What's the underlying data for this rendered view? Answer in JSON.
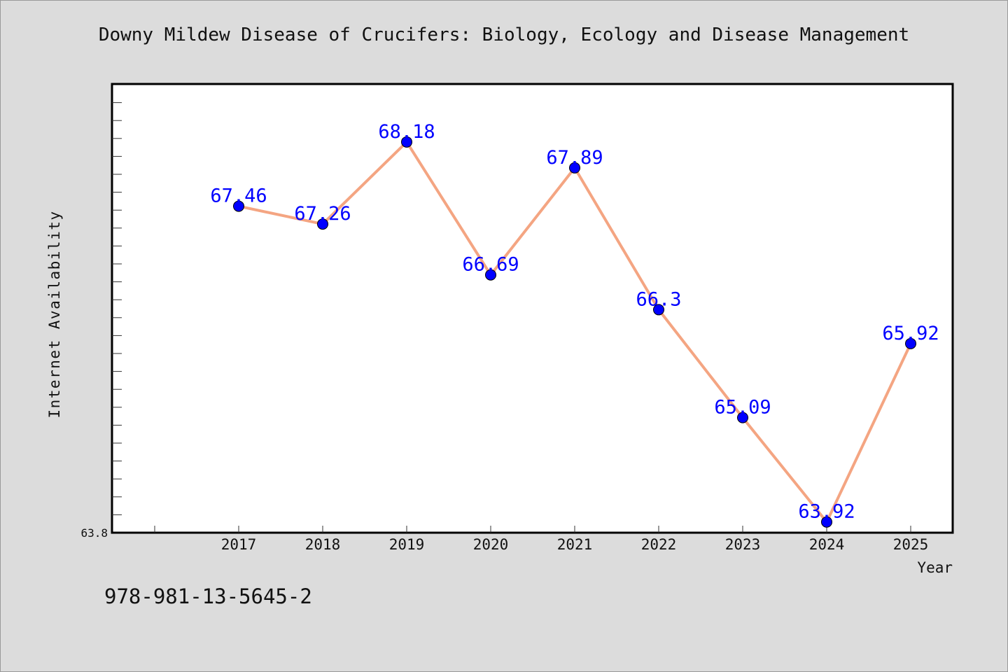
{
  "chart_data": {
    "type": "line",
    "title": "Downy Mildew Disease of Crucifers: Biology, Ecology and Disease Management",
    "xlabel": "Year",
    "ylabel": "Internet Availability",
    "categories": [
      "2017",
      "2018",
      "2019",
      "2020",
      "2021",
      "2022",
      "2023",
      "2024",
      "2025"
    ],
    "values": [
      67.46,
      67.26,
      68.18,
      66.69,
      67.89,
      66.3,
      65.09,
      63.92,
      65.92
    ],
    "data_labels": [
      "67.46",
      "67.26",
      "68.18",
      "66.69",
      "67.89",
      "66.3",
      "65.09",
      "63.92",
      "65.92"
    ],
    "ylim": [
      63.8,
      68.83
    ],
    "y_tick_label": "63.8",
    "grid": false,
    "legend": "none",
    "colors": {
      "line": "#f4a582",
      "marker": "#0000ff",
      "data_label": "#0000ff",
      "plot_background": "#ffffff",
      "figure_background": "#dcdcdc"
    }
  },
  "footer": {
    "isbn": "978-981-13-5645-2"
  }
}
